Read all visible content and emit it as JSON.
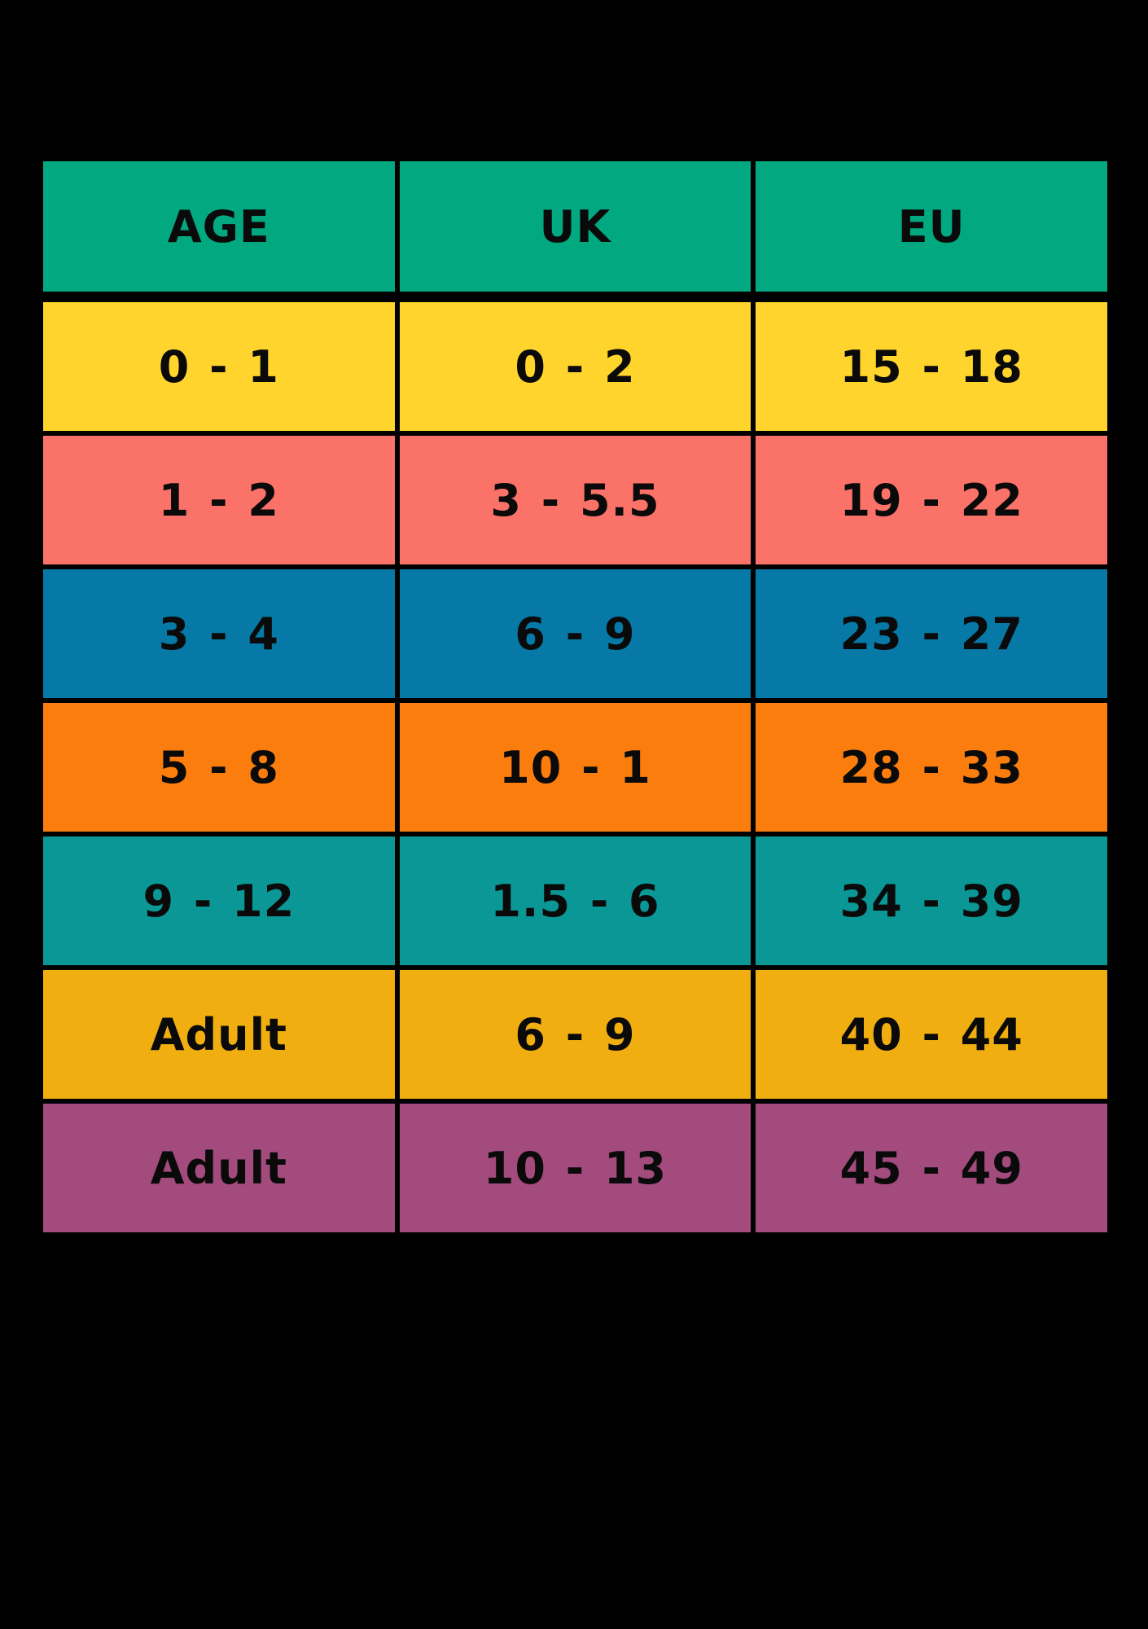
{
  "chart_data": {
    "type": "table",
    "columns": [
      "AGE",
      "UK",
      "EU"
    ],
    "rows": [
      [
        "0 - 1",
        "0 - 2",
        "15 - 18"
      ],
      [
        "1 - 2",
        "3 - 5.5",
        "19 - 22"
      ],
      [
        "3 - 4",
        "6 - 9",
        "23 - 27"
      ],
      [
        "5 - 8",
        "10 - 1",
        "28 - 33"
      ],
      [
        "9 - 12",
        "1.5 - 6",
        "34 - 39"
      ],
      [
        "Adult",
        "6 - 9",
        "40 - 44"
      ],
      [
        "Adult",
        "10 - 13",
        "45 - 49"
      ]
    ],
    "header_color": "#02A980",
    "row_colors": [
      "#FFD42C",
      "#FA7268",
      "#0779A6",
      "#FB7D0D",
      "#0A9795",
      "#F0AE11",
      "#A34B7D"
    ],
    "background": "#000000",
    "text_color": "#0A0A0A",
    "grid": "black gridlines between colored cells"
  },
  "table": {
    "columns": [
      "AGE",
      "UK",
      "EU"
    ],
    "header_bg": "#02A980",
    "rows": [
      {
        "age": "0 - 1",
        "uk": "0 - 2",
        "eu": "15 - 18",
        "color": "#FFD42C"
      },
      {
        "age": "1 - 2",
        "uk": "3 - 5.5",
        "eu": "19 - 22",
        "color": "#FA7268"
      },
      {
        "age": "3 - 4",
        "uk": "6 - 9",
        "eu": "23 - 27",
        "color": "#0779A6"
      },
      {
        "age": "5 - 8",
        "uk": "10 - 1",
        "eu": "28 - 33",
        "color": "#FB7D0D"
      },
      {
        "age": "9 - 12",
        "uk": "1.5 - 6",
        "eu": "34 - 39",
        "color": "#0A9795"
      },
      {
        "age": "Adult",
        "uk": "6 - 9",
        "eu": "40 - 44",
        "color": "#F0AE11"
      },
      {
        "age": "Adult",
        "uk": "10 - 13",
        "eu": "45 - 49",
        "color": "#A34B7D"
      }
    ]
  }
}
